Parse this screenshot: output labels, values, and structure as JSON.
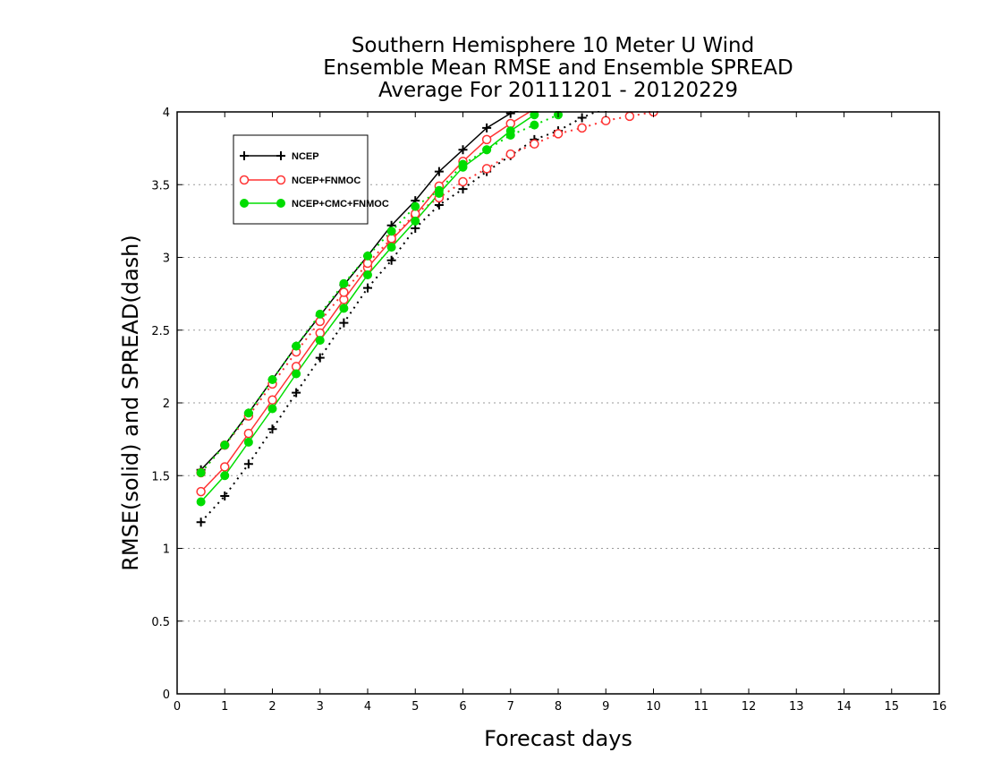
{
  "chart_data": {
    "type": "line",
    "title": [
      "Southern Hemisphere 10 Meter U Wind",
      "Ensemble Mean RMSE and Ensemble SPREAD",
      "Average For 20111201 - 20120229"
    ],
    "xlabel": "Forecast days",
    "ylabel": "RMSE(solid) and SPREAD(dash)",
    "xlim": [
      0,
      16
    ],
    "ylim": [
      0,
      4
    ],
    "xticks": [
      "0",
      "1",
      "2",
      "3",
      "4",
      "5",
      "6",
      "7",
      "8",
      "9",
      "10",
      "11",
      "12",
      "13",
      "14",
      "15",
      "16"
    ],
    "yticks": [
      "0",
      "0.5",
      "1",
      "1.5",
      "2",
      "2.5",
      "3",
      "3.5",
      "4"
    ],
    "grid": "horizontal dotted",
    "legend_position": "top-left",
    "series": [
      {
        "name": "NCEP",
        "color": "#000000",
        "marker": "plus",
        "rmse": {
          "x": [
            0.5,
            1,
            1.5,
            2,
            2.5,
            3,
            3.5,
            4,
            4.5,
            5,
            5.5,
            6,
            6.5,
            7,
            7.5
          ],
          "y": [
            1.54,
            1.71,
            1.93,
            2.16,
            2.39,
            2.6,
            2.81,
            3.01,
            3.22,
            3.39,
            3.59,
            3.74,
            3.89,
            3.99,
            4.05
          ]
        },
        "spread": {
          "x": [
            0.5,
            1,
            1.5,
            2,
            2.5,
            3,
            3.5,
            4,
            4.5,
            5,
            5.5,
            6,
            6.5,
            7,
            7.5,
            8,
            8.5,
            9
          ],
          "y": [
            1.18,
            1.36,
            1.58,
            1.82,
            2.07,
            2.31,
            2.55,
            2.79,
            2.98,
            3.2,
            3.36,
            3.47,
            3.59,
            3.7,
            3.81,
            3.87,
            3.96,
            4.03
          ]
        }
      },
      {
        "name": "NCEP+FNMOC",
        "color": "#ff3333",
        "marker": "open-circle",
        "rmse": {
          "x": [
            0.5,
            1,
            1.5,
            2,
            2.5,
            3,
            3.5,
            4,
            4.5,
            5,
            5.5,
            6,
            6.5,
            7,
            7.5
          ],
          "y": [
            1.39,
            1.56,
            1.79,
            2.02,
            2.25,
            2.48,
            2.71,
            2.93,
            3.12,
            3.29,
            3.49,
            3.66,
            3.81,
            3.92,
            4.02
          ]
        },
        "spread": {
          "x": [
            0.5,
            1,
            1.5,
            2,
            2.5,
            3,
            3.5,
            4,
            4.5,
            5,
            5.5,
            6,
            6.5,
            7,
            7.5,
            8,
            8.5,
            9,
            9.5,
            10
          ],
          "y": [
            1.52,
            1.71,
            1.91,
            2.13,
            2.35,
            2.56,
            2.76,
            2.96,
            3.13,
            3.3,
            3.41,
            3.52,
            3.61,
            3.71,
            3.78,
            3.85,
            3.89,
            3.94,
            3.97,
            4.0
          ]
        }
      },
      {
        "name": "NCEP+CMC+FNMOC",
        "color": "#00dd00",
        "marker": "filled-circle",
        "rmse": {
          "x": [
            0.5,
            1,
            1.5,
            2,
            2.5,
            3,
            3.5,
            4,
            4.5,
            5,
            5.5,
            6,
            6.5,
            7,
            7.5
          ],
          "y": [
            1.32,
            1.5,
            1.73,
            1.96,
            2.2,
            2.43,
            2.65,
            2.88,
            3.07,
            3.25,
            3.44,
            3.62,
            3.74,
            3.87,
            3.98
          ]
        },
        "spread": {
          "x": [
            0.5,
            1,
            1.5,
            2,
            2.5,
            3,
            3.5,
            4,
            4.5,
            5,
            5.5,
            6,
            6.5,
            7,
            7.5,
            8
          ],
          "y": [
            1.52,
            1.71,
            1.93,
            2.16,
            2.39,
            2.61,
            2.82,
            3.01,
            3.18,
            3.35,
            3.46,
            3.64,
            3.74,
            3.84,
            3.91,
            3.98
          ]
        }
      }
    ]
  }
}
